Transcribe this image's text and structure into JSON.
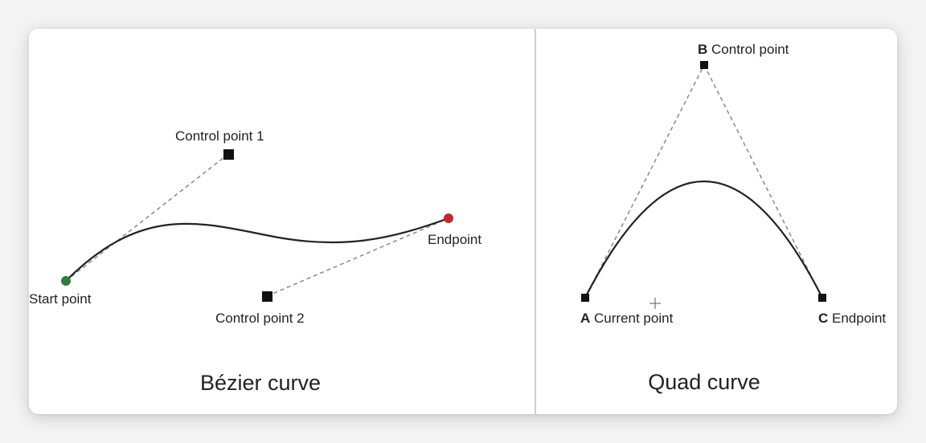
{
  "bezier": {
    "caption": "Bézier curve",
    "start_label": "Start point",
    "cp1_label": "Control point 1",
    "cp2_label": "Control point 2",
    "end_label": "Endpoint",
    "start_color": "#2e7d3a",
    "end_color": "#c62828"
  },
  "quad": {
    "caption": "Quad curve",
    "a_letter": "A",
    "a_label": "Current point",
    "b_letter": "B",
    "b_label": "Control point",
    "c_letter": "C",
    "c_label": "Endpoint"
  },
  "colors": {
    "curve": "#222222",
    "guide": "#888888",
    "divider": "#bdbdbd"
  }
}
